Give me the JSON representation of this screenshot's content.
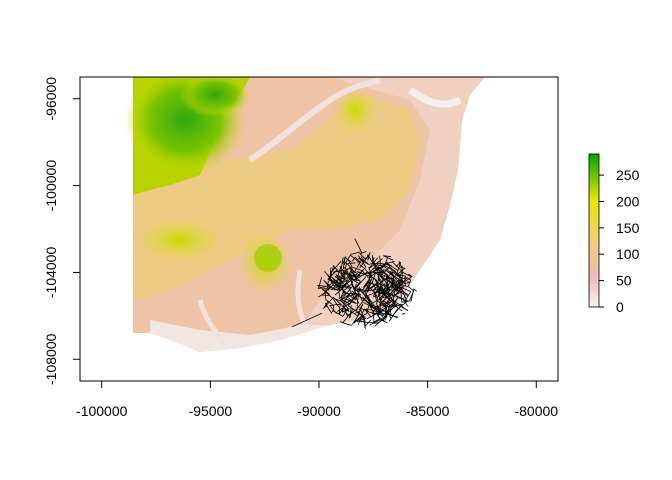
{
  "chart_data": {
    "type": "heatmap",
    "title": "",
    "xlabel": "",
    "ylabel": "",
    "xlim": [
      -101000,
      -79000
    ],
    "ylim": [
      -109000,
      -95000
    ],
    "x_ticks": [
      -100000,
      -95000,
      -90000,
      -85000,
      -80000
    ],
    "x_tick_labels": [
      "-100000",
      "-95000",
      "-90000",
      "-85000",
      "-80000"
    ],
    "y_ticks": [
      -96000,
      -100000,
      -104000,
      -108000
    ],
    "y_tick_labels": [
      "-96000",
      "-100000",
      "-104000",
      "-108000"
    ],
    "legend": {
      "placement": "right",
      "min": 0,
      "max": 290,
      "ticks": [
        0,
        50,
        100,
        150,
        200,
        250
      ],
      "tick_labels": [
        "0",
        "50",
        "100",
        "150",
        "200",
        "250"
      ],
      "colors": [
        "#f2f2f2",
        "#eebcb2",
        "#eecf73",
        "#e6e600",
        "#00a600"
      ]
    },
    "raster_extent": {
      "xmin": -98300,
      "xmax": -82000,
      "ymin": -108000,
      "ymax": -95000
    },
    "overlay": {
      "type": "road-network",
      "color": "#000000",
      "center": [
        -87800,
        -104800
      ],
      "radius_x": 2300,
      "radius_y": 1800
    }
  }
}
